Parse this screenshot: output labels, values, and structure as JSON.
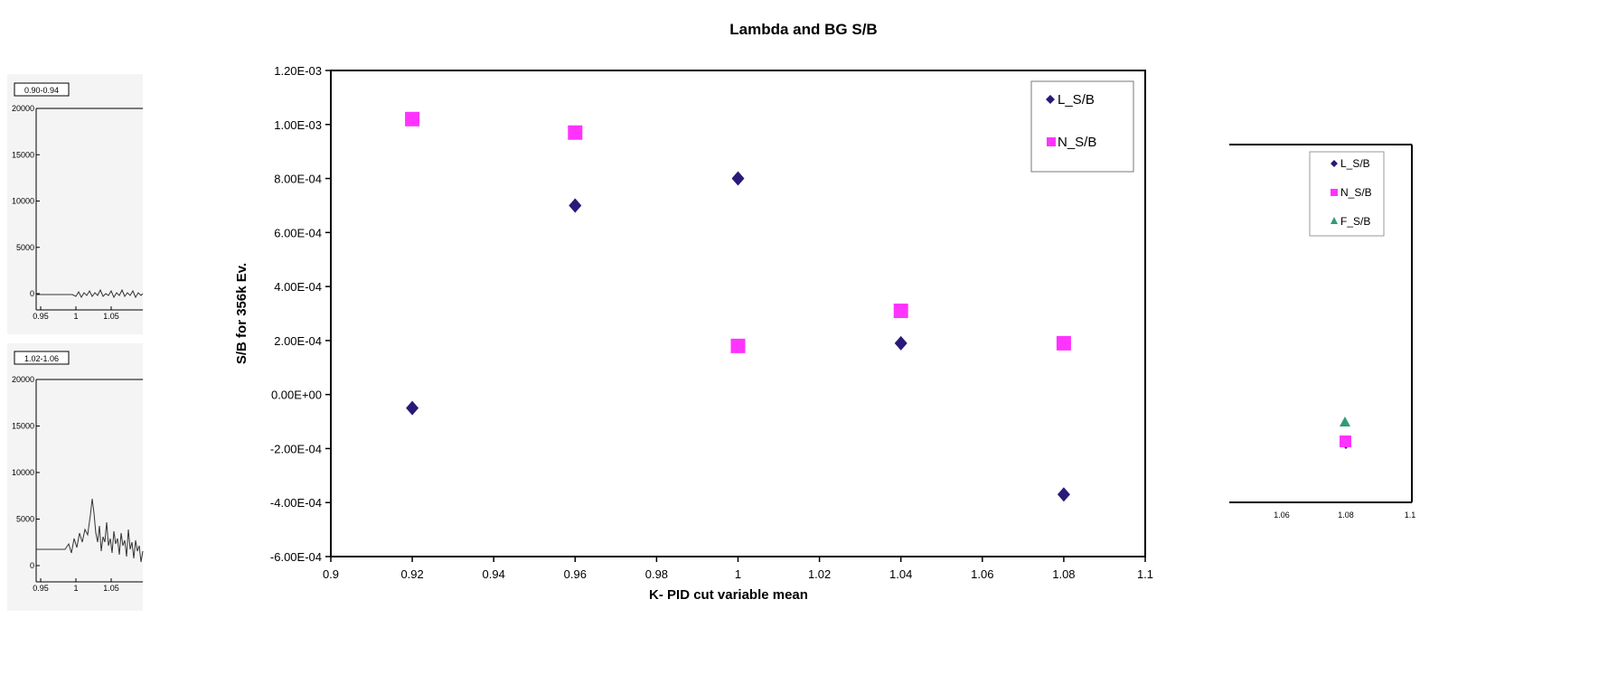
{
  "chart_data": [
    {
      "type": "scatter",
      "title": "Lambda and BG S/B",
      "xlabel": "K- PID cut variable mean",
      "ylabel": "S/B for 356k Ev.",
      "xlim": [
        0.9,
        1.1
      ],
      "ylim": [
        -0.0006,
        0.0012
      ],
      "x_ticks": [
        "0.9",
        "0.92",
        "0.94",
        "0.96",
        "0.98",
        "1",
        "1.02",
        "1.04",
        "1.06",
        "1.08",
        "1.1"
      ],
      "y_ticks": [
        "-6.00E-04",
        "-4.00E-04",
        "-2.00E-04",
        "0.00E+00",
        "2.00E-04",
        "4.00E-04",
        "6.00E-04",
        "8.00E-04",
        "1.00E-03",
        "1.20E-03"
      ],
      "legend_position": "top-right",
      "grid": false,
      "series": [
        {
          "name": "L_S/B",
          "marker": "diamond",
          "color": "#2a1a78",
          "x": [
            0.92,
            0.96,
            1.0,
            1.04,
            1.08
          ],
          "y": [
            -5e-05,
            0.0007,
            0.0008,
            0.00019,
            -0.00037
          ]
        },
        {
          "name": "N_S/B",
          "marker": "square",
          "color": "#ff33ff",
          "x": [
            0.92,
            0.96,
            1.0,
            1.04,
            1.08
          ],
          "y": [
            0.00102,
            0.00097,
            0.00018,
            0.00031,
            0.00019
          ]
        }
      ]
    },
    {
      "type": "line",
      "panel_label": "0.90-0.94",
      "x_ticks": [
        "0.95",
        "1",
        "1.05"
      ],
      "y_ticks": [
        "20000",
        "15000",
        "10000",
        "5000",
        "0"
      ],
      "ylim": [
        0,
        20000
      ]
    },
    {
      "type": "line",
      "panel_label": "1.02-1.06",
      "x_ticks": [
        "0.95",
        "1",
        "1.05"
      ],
      "y_ticks": [
        "20000",
        "15000",
        "10000",
        "5000",
        "0"
      ],
      "ylim": [
        0,
        20000
      ]
    },
    {
      "type": "scatter",
      "x_ticks": [
        "1.06",
        "1.08",
        "1.1"
      ],
      "legend_position": "top-right",
      "series": [
        {
          "name": "L_S/B",
          "marker": "diamond",
          "color": "#2a1a78"
        },
        {
          "name": "N_S/B",
          "marker": "square",
          "color": "#ff33ff"
        },
        {
          "name": "F_S/B",
          "marker": "triangle",
          "color": "#2e9c7a"
        }
      ]
    }
  ]
}
